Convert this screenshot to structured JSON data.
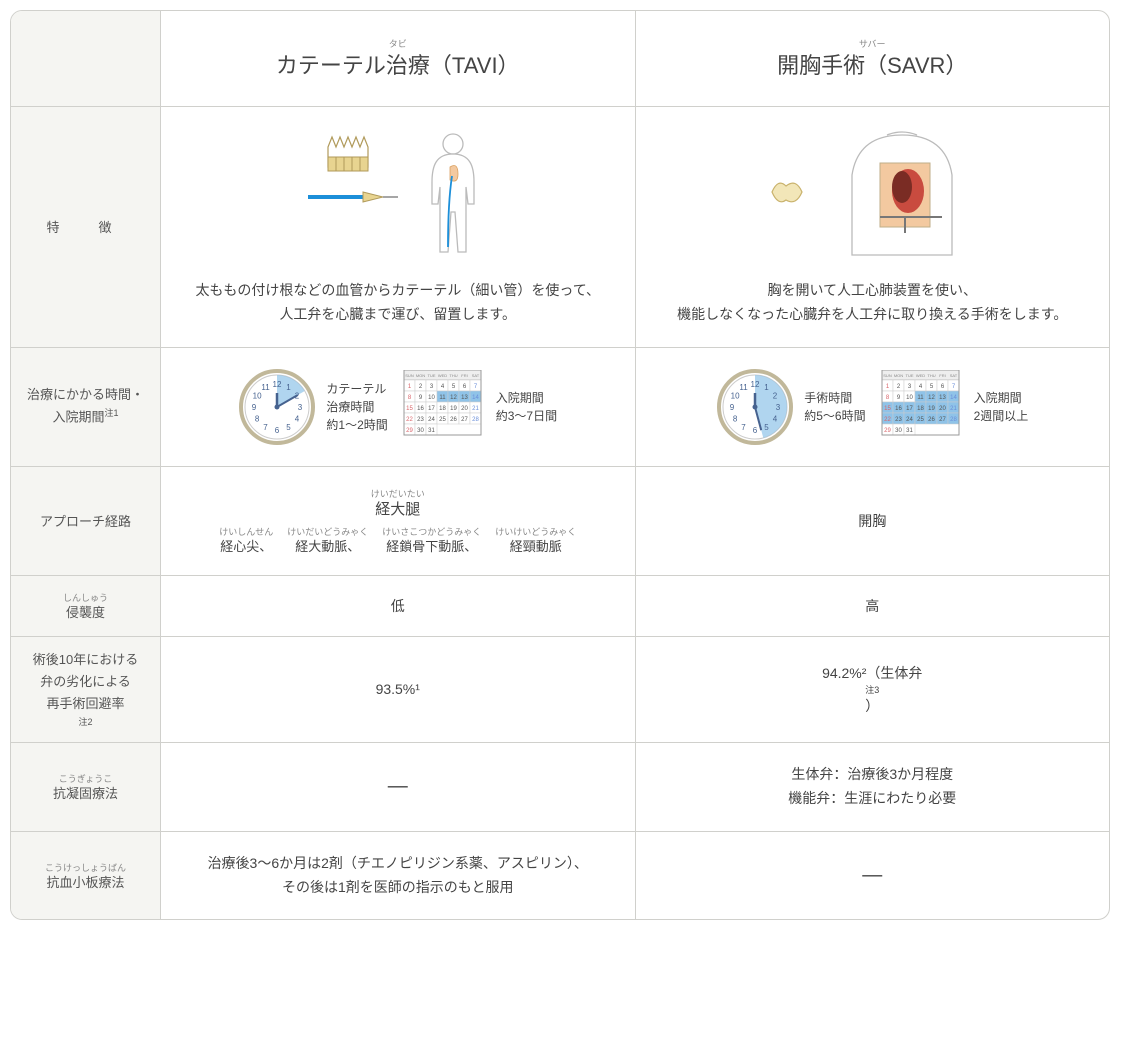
{
  "colors": {
    "border": "#d0d0cc",
    "labelBg": "#f5f5f2",
    "text": "#4a4a4a",
    "clockBlue": "#8fc3e8",
    "clockRing": "#c1b89a",
    "calRed": "#d9646a",
    "calBlue": "#6b8fd9",
    "stentGold": "#d9c26b",
    "catheterBlue": "#1c8fd9",
    "chestRed": "#c94b3f"
  },
  "header": {
    "tavi": {
      "ruby": "タビ",
      "title": "カテーテル治療（TAVI）"
    },
    "savr": {
      "ruby": "サバー",
      "title": "開胸手術（SAVR）"
    }
  },
  "rows": {
    "feature": {
      "label": "特　徴",
      "tavi": "太ももの付け根などの血管からカテーテル（細い管）を使って、\n人工弁を心臓まで運び、留置します。",
      "savr": "胸を開いて人工心肺装置を使い、\n機能しなくなった心臓弁を人工弁に取り換える手術をします。"
    },
    "time": {
      "label": "治療にかかる時間・\n入院期間注1",
      "tavi": {
        "clock": {
          "label1": "カテーテル",
          "label2": "治療時間",
          "value": "約1〜2時間",
          "sliceStart": 0,
          "sliceEnd": 60
        },
        "cal": {
          "label": "入院期間",
          "value": "約3〜7日間",
          "hlStart": 11,
          "hlEnd": 14
        }
      },
      "savr": {
        "clock": {
          "label1": "手術時間",
          "label2": "",
          "value": "約5〜6時間",
          "sliceStart": 0,
          "sliceEnd": 165
        },
        "cal": {
          "label": "入院期間",
          "value": "2週間以上",
          "hlStart": 11,
          "hlEnd": 28
        }
      }
    },
    "approach": {
      "label": "アプローチ経路",
      "tavi": {
        "main": {
          "ruby": "けいだいたい",
          "text": "経大腿"
        },
        "subs": [
          {
            "ruby": "けいしんせん",
            "text": "経心尖、"
          },
          {
            "ruby": "けいだいどうみゃく",
            "text": "経大動脈、"
          },
          {
            "ruby": "けいさこつかどうみゃく",
            "text": "経鎖骨下動脈、"
          },
          {
            "ruby": "けいけいどうみゃく",
            "text": "経頸動脈"
          }
        ]
      },
      "savr": "開胸"
    },
    "invasive": {
      "ruby": "しんしゅう",
      "label": "侵襲度",
      "tavi": "低",
      "savr": "高"
    },
    "reop": {
      "label": "術後10年における\n弁の劣化による\n再手術回避率注2",
      "tavi": "93.5%¹",
      "savr": "94.2%²（生体弁注3）"
    },
    "anticoag": {
      "ruby": "こうぎょうこ",
      "label": "抗凝固療法",
      "tavi": "―",
      "savr": "生体弁：治療後3か月程度\n機能弁：生涯にわたり必要"
    },
    "antiplat": {
      "ruby": "こうけっしょうばん",
      "label": "抗血小板療法",
      "tavi": "治療後3〜6か月は2剤（チエノピリジン系薬、アスピリン）、\nその後は1剤を医師の指示のもと服用",
      "savr": "―"
    }
  }
}
